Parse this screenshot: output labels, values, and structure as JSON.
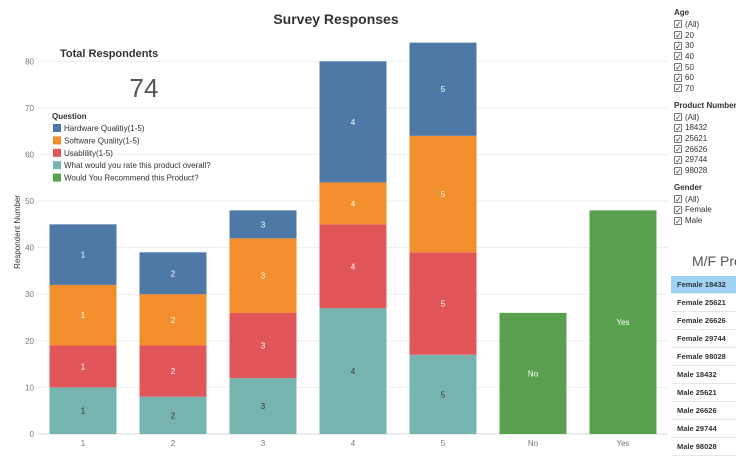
{
  "chart_data": {
    "type": "bar",
    "stacked": true,
    "title": "Survey Responses",
    "ylabel": "Respondent Number",
    "xlabel": "",
    "ylim": [
      0,
      85
    ],
    "yticks": [
      0,
      10,
      20,
      30,
      40,
      50,
      60,
      70,
      80
    ],
    "categories": [
      "1",
      "2",
      "3",
      "4",
      "5",
      "No",
      "Yes"
    ],
    "series": [
      {
        "name": "What would you rate this product overall?",
        "color": "#76b4b0",
        "values": [
          10,
          8,
          12,
          27,
          17,
          null,
          null
        ],
        "labels": [
          "1",
          "2",
          "3",
          "4",
          "5",
          null,
          null
        ]
      },
      {
        "name": "Usablility(1-5)",
        "color": "#e15759",
        "values": [
          9,
          11,
          14,
          18,
          22,
          null,
          null
        ],
        "labels": [
          "1",
          "2",
          "3",
          "4",
          "5",
          null,
          null
        ]
      },
      {
        "name": "Software Quality(1-5)",
        "color": "#f28e2b",
        "values": [
          13,
          11,
          16,
          9,
          25,
          null,
          null
        ],
        "labels": [
          "1",
          "2",
          "3",
          "4",
          "5",
          null,
          null
        ]
      },
      {
        "name": "Hardware Qualitiy(1-5)",
        "color": "#4e79a7",
        "values": [
          13,
          9,
          6,
          26,
          20,
          null,
          null
        ],
        "labels": [
          "1",
          "2",
          "3",
          "4",
          "5",
          null,
          null
        ]
      },
      {
        "name": "Would You Recommend this Product?",
        "color": "#59a14f",
        "values": [
          null,
          null,
          null,
          null,
          null,
          26,
          48
        ],
        "labels": [
          null,
          null,
          null,
          null,
          null,
          "No",
          "Yes"
        ]
      }
    ],
    "legend": {
      "title": "Question",
      "items": [
        {
          "name": "Hardware Qualitiy(1-5)",
          "color": "#4e79a7"
        },
        {
          "name": "Software Quality(1-5)",
          "color": "#f28e2b"
        },
        {
          "name": "Usablility(1-5)",
          "color": "#e15759"
        },
        {
          "name": "What would you rate this product overall?",
          "color": "#76b4b0"
        },
        {
          "name": "Would You Recommend this Product?",
          "color": "#59a14f"
        }
      ]
    },
    "kpi": {
      "label": "Total Respondents",
      "value": "74"
    }
  },
  "filters": {
    "age": {
      "title": "Age",
      "items": [
        "(All)",
        "20",
        "30",
        "40",
        "50",
        "60",
        "70"
      ]
    },
    "product": {
      "title": "Product Number",
      "items": [
        "(All)",
        "18432",
        "25621",
        "26626",
        "29744",
        "98028"
      ]
    },
    "gender": {
      "title": "Gender",
      "items": [
        "(All)",
        "Female",
        "Male"
      ]
    }
  },
  "mf_table": {
    "title": "M/F Pro",
    "rows": [
      "Female 18432",
      "Female 25621",
      "Female 26626",
      "Female 29744",
      "Female 98028",
      "Male 18432",
      "Male 25621",
      "Male 26626",
      "Male 29744",
      "Male 98028"
    ],
    "selected_index": 0
  }
}
